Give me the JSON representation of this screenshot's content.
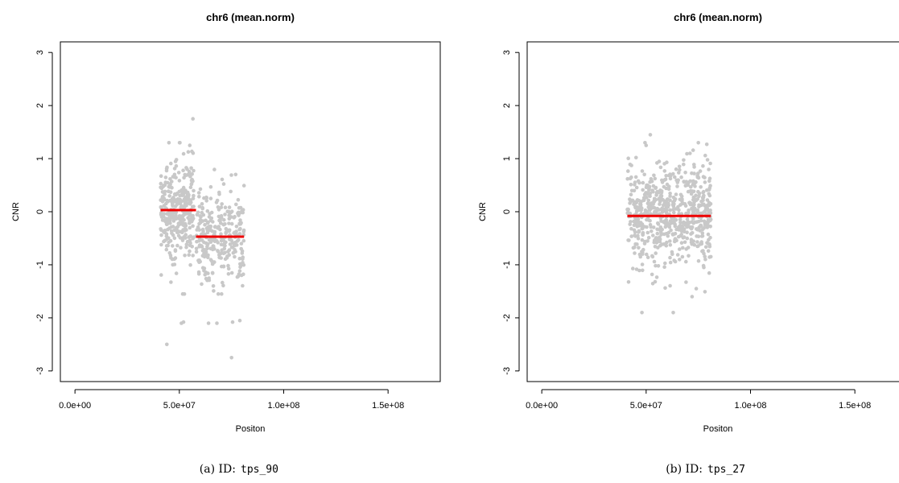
{
  "chart_data": [
    {
      "type": "scatter",
      "title": "chr6 (mean.norm)",
      "xlabel": "Positon",
      "ylabel": "CNR",
      "xlim": [
        -7000000,
        175000000
      ],
      "ylim": [
        -3.2,
        3.2
      ],
      "xticks": [
        0,
        50000000,
        100000000,
        150000000
      ],
      "xtick_labels": [
        "0.0e+00",
        "5.0e+07",
        "1.0e+08",
        "1.5e+08"
      ],
      "yticks": [
        -3,
        -2,
        -1,
        0,
        1,
        2,
        3
      ],
      "ytick_labels": [
        "-3",
        "-2",
        "-1",
        "0",
        "1",
        "2",
        "3"
      ],
      "point_color": "#c8c8c8",
      "segment_color": "#ee0000",
      "grid": false,
      "clusters": [
        {
          "x_range": [
            41000000,
            57000000
          ],
          "y_center": 0.05,
          "y_spread": 0.45,
          "count": 340,
          "outliers": [
            [
              44000000,
              -2.5
            ],
            [
              51000000,
              -2.1
            ],
            [
              52000000,
              -2.08
            ],
            [
              56500000,
              1.75
            ],
            [
              55000000,
              1.25
            ],
            [
              45000000,
              1.3
            ]
          ]
        },
        {
          "x_range": [
            58000000,
            81000000
          ],
          "y_center": -0.45,
          "y_spread": 0.45,
          "count": 300,
          "outliers": [
            [
              75000000,
              -2.75
            ],
            [
              68000000,
              -2.1
            ],
            [
              75500000,
              -2.08
            ],
            [
              79000000,
              -2.05
            ],
            [
              64000000,
              -2.1
            ],
            [
              77000000,
              0.7
            ]
          ]
        }
      ],
      "segments": [
        {
          "x_start": 41000000,
          "x_end": 58000000,
          "y": 0.03
        },
        {
          "x_start": 58000000,
          "x_end": 81000000,
          "y": -0.47
        }
      ],
      "caption": {
        "label": "(a)  ID:",
        "id": "tps_90"
      }
    },
    {
      "type": "scatter",
      "title": "chr6 (mean.norm)",
      "xlabel": "Positon",
      "ylabel": "CNR",
      "xlim": [
        -7000000,
        175000000
      ],
      "ylim": [
        -3.2,
        3.2
      ],
      "xticks": [
        0,
        50000000,
        100000000,
        150000000
      ],
      "xtick_labels": [
        "0.0e+00",
        "5.0e+07",
        "1.0e+08",
        "1.5e+08"
      ],
      "yticks": [
        -3,
        -2,
        -1,
        0,
        1,
        2,
        3
      ],
      "ytick_labels": [
        "-3",
        "-2",
        "-1",
        "0",
        "1",
        "2",
        "3"
      ],
      "point_color": "#c8c8c8",
      "segment_color": "#ee0000",
      "grid": false,
      "clusters": [
        {
          "x_range": [
            41000000,
            81000000
          ],
          "y_center": -0.05,
          "y_spread": 0.48,
          "count": 640,
          "outliers": [
            [
              48000000,
              -1.9
            ],
            [
              63000000,
              -1.9
            ],
            [
              52000000,
              1.45
            ],
            [
              50000000,
              1.25
            ],
            [
              71000000,
              1.1
            ],
            [
              72000000,
              -1.6
            ],
            [
              74000000,
              -1.45
            ]
          ]
        }
      ],
      "segments": [
        {
          "x_start": 41000000,
          "x_end": 81000000,
          "y": -0.08
        }
      ],
      "caption": {
        "label": "(b)  ID:",
        "id": "tps_27"
      }
    }
  ]
}
